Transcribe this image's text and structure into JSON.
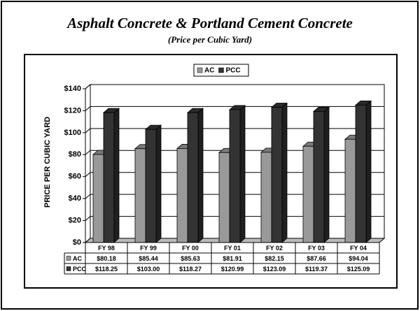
{
  "chart_data": {
    "type": "bar3d",
    "title": "Asphalt Concrete & Portland Cement Concrete",
    "subtitle": "(Price per Cubic Yard)",
    "ylabel": "PRICE PER CUBIC YARD",
    "categories": [
      "FY 98",
      "FY 99",
      "FY 00",
      "FY 01",
      "FY 02",
      "FY 03",
      "FY 04"
    ],
    "series": [
      {
        "name": "AC",
        "color": "#999999",
        "values": [
          80.18,
          85.44,
          85.63,
          81.91,
          82.15,
          87.66,
          94.04
        ],
        "value_labels": [
          "$80.18",
          "$85.44",
          "$85.63",
          "$81.91",
          "$82.15",
          "$87.66",
          "$94.04"
        ]
      },
      {
        "name": "PCC",
        "color": "#333333",
        "values": [
          118.25,
          103.0,
          118.27,
          120.99,
          123.09,
          119.37,
          125.09
        ],
        "value_labels": [
          "$118.25",
          "$103.00",
          "$118.27",
          "$120.99",
          "$123.09",
          "$119.37",
          "$125.09"
        ]
      }
    ],
    "ylim": [
      0,
      140
    ],
    "yticks": [
      {
        "value": 0,
        "label": "$0"
      },
      {
        "value": 20,
        "label": "$20"
      },
      {
        "value": 40,
        "label": "$40"
      },
      {
        "value": 60,
        "label": "$60"
      },
      {
        "value": 80,
        "label": "$80"
      },
      {
        "value": 100,
        "label": "$100"
      },
      {
        "value": 120,
        "label": "$120"
      },
      {
        "value": 140,
        "label": "$140"
      }
    ],
    "grid": true,
    "legend": "top"
  }
}
